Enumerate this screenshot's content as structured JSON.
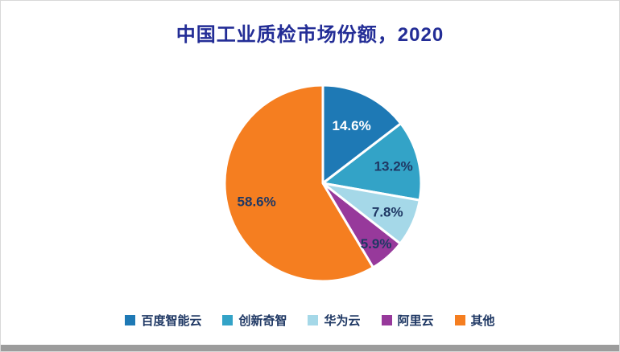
{
  "title": "中国工业质检市场份额，2020",
  "colors": {
    "title_text": "#232d96",
    "percent_text": "#1f3864",
    "percent_text_on_dark": "#ffffff",
    "slice_separator": "#ffffff",
    "footer_bar": "#9c9c9c"
  },
  "chart_data": {
    "type": "pie",
    "title": "中国工业质检市场份额，2020",
    "legend_position": "bottom",
    "start_angle_deg": -90,
    "direction": "clockwise",
    "total": 100.1,
    "slices": [
      {
        "label": "百度智能云",
        "value": 14.6,
        "pct_label": "14.6%",
        "color": "#1e79b5",
        "label_color": "#ffffff",
        "label_r": 0.66
      },
      {
        "label": "创新奇智",
        "value": 13.2,
        "pct_label": "13.2%",
        "color": "#33a3c7",
        "label_color": "#1f3864",
        "label_r": 0.74
      },
      {
        "label": "华为云",
        "value": 7.8,
        "pct_label": "7.8%",
        "color": "#a5d8e8",
        "label_color": "#1f3864",
        "label_r": 0.72
      },
      {
        "label": "阿里云",
        "value": 5.9,
        "pct_label": "5.9%",
        "color": "#97399b",
        "label_color": "#1f3864",
        "label_r": 0.82
      },
      {
        "label": "其他",
        "value": 58.6,
        "pct_label": "58.6%",
        "color": "#f57e20",
        "label_color": "#1f3864",
        "label_r": 0.7
      }
    ]
  }
}
